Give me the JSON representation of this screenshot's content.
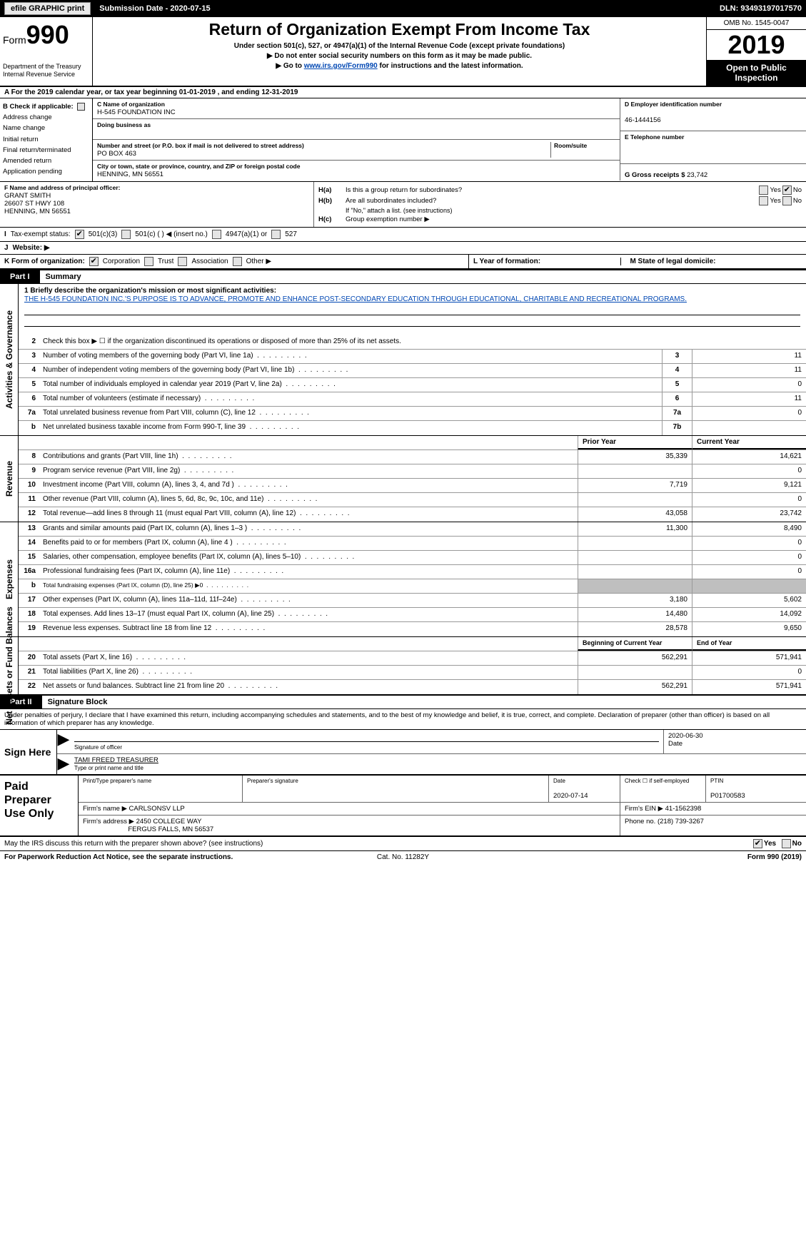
{
  "topbar": {
    "efile_label": "efile GRAPHIC print",
    "submission_label": "Submission Date - 2020-07-15",
    "dln_label": "DLN: 93493197017570"
  },
  "header": {
    "form_prefix": "Form",
    "form_number": "990",
    "dept": "Department of the Treasury",
    "irs": "Internal Revenue Service",
    "title": "Return of Organization Exempt From Income Tax",
    "sub1": "Under section 501(c), 527, or 4947(a)(1) of the Internal Revenue Code (except private foundations)",
    "sub2": "▶ Do not enter social security numbers on this form as it may be made public.",
    "sub3_pre": "▶ Go to ",
    "sub3_link": "www.irs.gov/Form990",
    "sub3_post": " for instructions and the latest information.",
    "omb": "OMB No. 1545-0047",
    "year": "2019",
    "open": "Open to Public Inspection"
  },
  "rowA": "A   For the 2019 calendar year, or tax year beginning 01-01-2019       , and ending 12-31-2019",
  "colB": {
    "title": "B Check if applicable:",
    "items": [
      "Address change",
      "Name change",
      "Initial return",
      "Final return/terminated",
      "Amended return",
      "Application pending"
    ]
  },
  "colC": {
    "name_lbl": "C Name of organization",
    "name": "H-545 FOUNDATION INC",
    "dba_lbl": "Doing business as",
    "dba": "",
    "street_lbl": "Number and street (or P.O. box if mail is not delivered to street address)",
    "room_lbl": "Room/suite",
    "street": "PO BOX 463",
    "city_lbl": "City or town, state or province, country, and ZIP or foreign postal code",
    "city": "HENNING, MN  56551"
  },
  "colDE": {
    "ein_lbl": "D Employer identification number",
    "ein": "46-1444156",
    "tel_lbl": "E Telephone number",
    "tel": "",
    "gross_lbl": "G Gross receipts $ ",
    "gross": "23,742"
  },
  "rowF": {
    "lbl": "F  Name and address of principal officer:",
    "name": "GRANT SMITH",
    "addr1": "26607 ST HWY 108",
    "addr2": "HENNING, MN  56551"
  },
  "rowH": {
    "ha_k": "H(a)",
    "ha": "Is this a group return for subordinates?",
    "hb_k": "H(b)",
    "hb": "Are all subordinates included?",
    "hb_note": "If \"No,\" attach a list. (see instructions)",
    "hc_k": "H(c)",
    "hc": "Group exemption number ▶",
    "yes": "Yes",
    "no": "No"
  },
  "rowI": {
    "lbl": "I",
    "text": "Tax-exempt status:",
    "o1": "501(c)(3)",
    "o2": "501(c) (  ) ◀ (insert no.)",
    "o3": "4947(a)(1) or",
    "o4": "527"
  },
  "rowJ": {
    "lbl": "J",
    "text": "Website: ▶"
  },
  "rowK": {
    "lbl": "K Form of organization:",
    "o1": "Corporation",
    "o2": "Trust",
    "o3": "Association",
    "o4": "Other ▶"
  },
  "rowLM": {
    "l_lbl": "L Year of formation:",
    "m_lbl": "M State of legal domicile:"
  },
  "part1": {
    "tag": "Part I",
    "title": "Summary"
  },
  "mission": {
    "intro": "1  Briefly describe the organization's mission or most significant activities:",
    "text": "THE H-545 FOUNDATION INC.'S PURPOSE IS TO ADVANCE, PROMOTE AND ENHANCE POST-SECONDARY EDUCATION THROUGH EDUCATIONAL, CHARITABLE AND RECREATIONAL PROGRAMS."
  },
  "sections": {
    "activities": {
      "label": "Activities & Governance",
      "lines": [
        {
          "num": "2",
          "desc": "Check this box ▶ ☐  if the organization discontinued its operations or disposed of more than 25% of its net assets.",
          "box": "",
          "prior": "",
          "curr": "",
          "nobox": true
        },
        {
          "num": "3",
          "desc": "Number of voting members of the governing body (Part VI, line 1a)",
          "box": "3",
          "val": "11",
          "single": true
        },
        {
          "num": "4",
          "desc": "Number of independent voting members of the governing body (Part VI, line 1b)",
          "box": "4",
          "val": "11",
          "single": true
        },
        {
          "num": "5",
          "desc": "Total number of individuals employed in calendar year 2019 (Part V, line 2a)",
          "box": "5",
          "val": "0",
          "single": true
        },
        {
          "num": "6",
          "desc": "Total number of volunteers (estimate if necessary)",
          "box": "6",
          "val": "11",
          "single": true
        },
        {
          "num": "7a",
          "desc": "Total unrelated business revenue from Part VIII, column (C), line 12",
          "box": "7a",
          "val": "0",
          "single": true
        },
        {
          "num": "b",
          "desc": "Net unrelated business taxable income from Form 990-T, line 39",
          "box": "7b",
          "val": "",
          "single": true
        }
      ]
    },
    "revenue": {
      "label": "Revenue",
      "header": {
        "prior": "Prior Year",
        "curr": "Current Year"
      },
      "lines": [
        {
          "num": "8",
          "desc": "Contributions and grants (Part VIII, line 1h)",
          "prior": "35,339",
          "curr": "14,621"
        },
        {
          "num": "9",
          "desc": "Program service revenue (Part VIII, line 2g)",
          "prior": "",
          "curr": "0"
        },
        {
          "num": "10",
          "desc": "Investment income (Part VIII, column (A), lines 3, 4, and 7d )",
          "prior": "7,719",
          "curr": "9,121"
        },
        {
          "num": "11",
          "desc": "Other revenue (Part VIII, column (A), lines 5, 6d, 8c, 9c, 10c, and 11e)",
          "prior": "",
          "curr": "0"
        },
        {
          "num": "12",
          "desc": "Total revenue—add lines 8 through 11 (must equal Part VIII, column (A), line 12)",
          "prior": "43,058",
          "curr": "23,742"
        }
      ]
    },
    "expenses": {
      "label": "Expenses",
      "lines": [
        {
          "num": "13",
          "desc": "Grants and similar amounts paid (Part IX, column (A), lines 1–3 )",
          "prior": "11,300",
          "curr": "8,490"
        },
        {
          "num": "14",
          "desc": "Benefits paid to or for members (Part IX, column (A), line 4 )",
          "prior": "",
          "curr": "0"
        },
        {
          "num": "15",
          "desc": "Salaries, other compensation, employee benefits (Part IX, column (A), lines 5–10)",
          "prior": "",
          "curr": "0"
        },
        {
          "num": "16a",
          "desc": "Professional fundraising fees (Part IX, column (A), line 11e)",
          "prior": "",
          "curr": "0"
        },
        {
          "num": "b",
          "desc": "Total fundraising expenses (Part IX, column (D), line 25) ▶0",
          "prior": "",
          "curr": "",
          "shade": true,
          "small": true
        },
        {
          "num": "17",
          "desc": "Other expenses (Part IX, column (A), lines 11a–11d, 11f–24e)",
          "prior": "3,180",
          "curr": "5,602"
        },
        {
          "num": "18",
          "desc": "Total expenses. Add lines 13–17 (must equal Part IX, column (A), line 25)",
          "prior": "14,480",
          "curr": "14,092"
        },
        {
          "num": "19",
          "desc": "Revenue less expenses. Subtract line 18 from line 12",
          "prior": "28,578",
          "curr": "9,650"
        }
      ]
    },
    "net": {
      "label": "Net Assets or Fund Balances",
      "header": {
        "prior": "Beginning of Current Year",
        "curr": "End of Year"
      },
      "lines": [
        {
          "num": "20",
          "desc": "Total assets (Part X, line 16)",
          "prior": "562,291",
          "curr": "571,941"
        },
        {
          "num": "21",
          "desc": "Total liabilities (Part X, line 26)",
          "prior": "",
          "curr": "0"
        },
        {
          "num": "22",
          "desc": "Net assets or fund balances. Subtract line 21 from line 20",
          "prior": "562,291",
          "curr": "571,941"
        }
      ]
    }
  },
  "part2": {
    "tag": "Part II",
    "title": "Signature Block"
  },
  "sig": {
    "intro": "Under penalties of perjury, I declare that I have examined this return, including accompanying schedules and statements, and to the best of my knowledge and belief, it is true, correct, and complete. Declaration of preparer (other than officer) is based on all information of which preparer has any knowledge.",
    "sign_here": "Sign Here",
    "sig_lbl": "Signature of officer",
    "date": "2020-06-30",
    "date_lbl": "Date",
    "name": "TAMI FREED  TREASURER",
    "name_lbl": "Type or print name and title"
  },
  "paid": {
    "lbl": "Paid Preparer Use Only",
    "h_name": "Print/Type preparer's name",
    "h_sig": "Preparer's signature",
    "h_date": "Date",
    "date": "2020-07-14",
    "chk_lbl": "Check ☐ if self-employed",
    "ptin_lbl": "PTIN",
    "ptin": "P01700583",
    "firm_name_lbl": "Firm's name    ▶",
    "firm_name": "CARLSONSV LLP",
    "firm_ein_lbl": "Firm's EIN ▶",
    "firm_ein": "41-1562398",
    "firm_addr_lbl": "Firm's address ▶",
    "firm_addr1": "2450 COLLEGE WAY",
    "firm_addr2": "FERGUS FALLS, MN  56537",
    "phone_lbl": "Phone no.",
    "phone": "(218) 739-3267"
  },
  "discuss": {
    "text": "May the IRS discuss this return with the preparer shown above? (see instructions)",
    "yes": "Yes",
    "no": "No"
  },
  "footer": {
    "l": "For Paperwork Reduction Act Notice, see the separate instructions.",
    "m": "Cat. No. 11282Y",
    "r": "Form 990 (2019)"
  }
}
